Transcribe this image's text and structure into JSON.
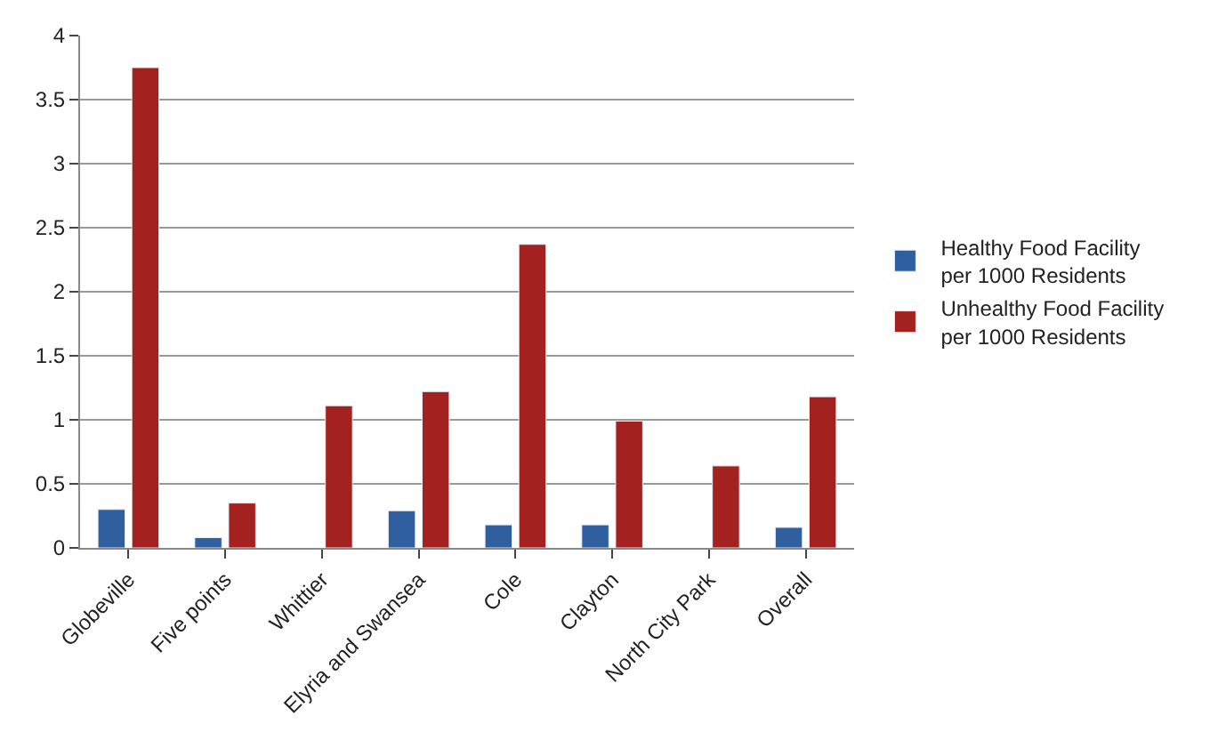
{
  "chart_data": {
    "type": "bar",
    "categories": [
      "Globeville",
      "Five points",
      "Whittier",
      "Elyria and Swansea",
      "Cole",
      "Clayton",
      "North City Park",
      "Overall"
    ],
    "series": [
      {
        "name": "Healthy Food Facility per 1000 Residents",
        "color": "#2f5f9f",
        "values": [
          0.3,
          0.08,
          null,
          0.29,
          0.18,
          0.18,
          null,
          0.16
        ]
      },
      {
        "name": "Unhealthy Food Facility per 1000 Residents",
        "color": "#a3211f",
        "values": [
          3.75,
          0.35,
          1.11,
          1.22,
          2.37,
          0.99,
          0.64,
          1.18
        ]
      }
    ],
    "ylim": [
      0,
      4
    ],
    "yticks": [
      0,
      {
        "value": 0.5,
        "label": "0.5"
      },
      1,
      {
        "value": 1.5,
        "label": "1.5"
      },
      2,
      {
        "value": 2.5,
        "label": "2.5"
      },
      3,
      {
        "value": 3.5,
        "label": "3.5"
      },
      4
    ],
    "grid": "y",
    "legend": "right"
  }
}
